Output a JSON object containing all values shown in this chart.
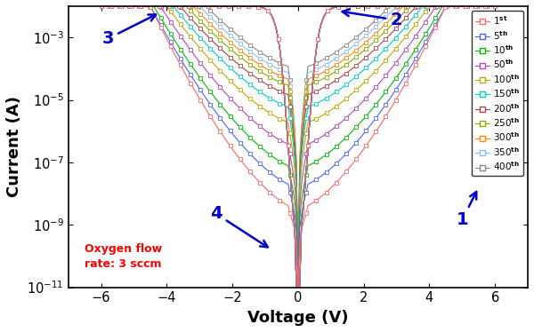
{
  "xlabel": "Voltage (V)",
  "ylabel": "Current (A)",
  "xlim": [
    -7.0,
    7.0
  ],
  "ylog_min": -11,
  "ylog_max": -2,
  "annotation_text": "Oxygen flow\nrate: 3 sccm",
  "annotation_color": "#FF0000",
  "arrow_color": "#0000CC",
  "cycle_labels": [
    "1st",
    "5th",
    "10th",
    "50th",
    "100th",
    "150th",
    "200th",
    "250th",
    "300th",
    "350th",
    "400th"
  ],
  "colors": [
    "#FF6666",
    "#4466FF",
    "#00BB00",
    "#BB44BB",
    "#BBAA00",
    "#00CCCC",
    "#AA4444",
    "#88AA00",
    "#FF8800",
    "#88BBFF",
    "#888888"
  ],
  "V_MAX": 6.0,
  "figsize": [
    6.0,
    3.74
  ],
  "dpi": 100,
  "lrs_log": -2.0,
  "min_log_base": -11.0,
  "min_log_top": -10.5,
  "hrs_log_values": [
    -8.5,
    -7.8,
    -7.2,
    -6.5,
    -5.8,
    -5.3,
    -4.9,
    -4.6,
    -4.4,
    -4.2,
    -4.0
  ],
  "reset_v_values": [
    4.5,
    4.5,
    4.4,
    4.2,
    4.0,
    3.8,
    3.6,
    3.4,
    3.2,
    3.0,
    2.8
  ]
}
